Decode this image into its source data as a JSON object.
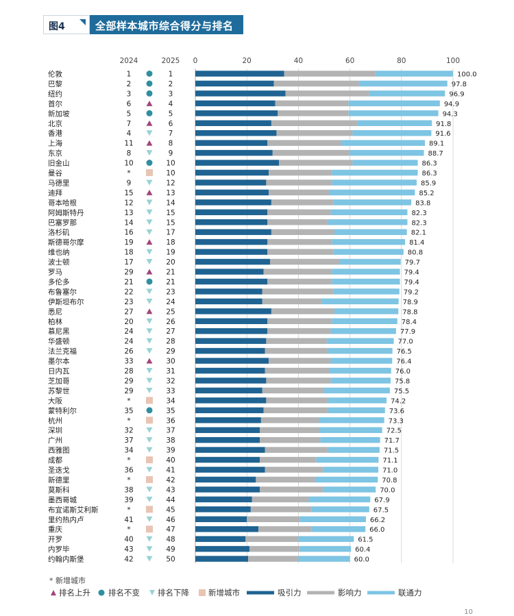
{
  "header": {
    "figure_label": "图4",
    "title": "全部样本城市综合得分与排名"
  },
  "columns": {
    "y2024": "2024",
    "y2025": "2025"
  },
  "axis_ticks": [
    "0",
    "20",
    "40",
    "60",
    "80",
    "100"
  ],
  "footnote": "* 新增城市",
  "page_number": "10",
  "legend": {
    "up": "排名上升",
    "same": "排名不变",
    "down": "排名下降",
    "new": "新增城市",
    "attraction": "吸引力",
    "influence": "影响力",
    "connectivity": "联通力"
  },
  "colors": {
    "attraction": "#1f6392",
    "influence": "#b3b3b3",
    "connectivity": "#7ec4e3",
    "up": "#a3457b",
    "same": "#2f8fa0",
    "down": "#9ad2d2",
    "new": "#e8c4b4"
  },
  "chart_data": {
    "type": "bar",
    "stacked": true,
    "orientation": "horizontal",
    "xlim": [
      0,
      100
    ],
    "grid": true,
    "legend_position": "bottom",
    "rows": [
      {
        "city": "伦敦",
        "r2024": "1",
        "trend": "same",
        "r2025": "1",
        "total": "100.0",
        "a": 34.5,
        "i": 35.5,
        "c": 30.0
      },
      {
        "city": "巴黎",
        "r2024": "2",
        "trend": "same",
        "r2025": "2",
        "total": "97.8",
        "a": 30.5,
        "i": 33.0,
        "c": 34.3
      },
      {
        "city": "纽约",
        "r2024": "3",
        "trend": "same",
        "r2025": "3",
        "total": "96.9",
        "a": 35.0,
        "i": 32.5,
        "c": 29.4
      },
      {
        "city": "首尔",
        "r2024": "6",
        "trend": "up",
        "r2025": "4",
        "total": "94.9",
        "a": 31.0,
        "i": 28.5,
        "c": 35.4
      },
      {
        "city": "新加坡",
        "r2024": "5",
        "trend": "same",
        "r2025": "5",
        "total": "94.3",
        "a": 32.0,
        "i": 27.5,
        "c": 34.8
      },
      {
        "city": "北京",
        "r2024": "7",
        "trend": "up",
        "r2025": "6",
        "total": "91.8",
        "a": 29.5,
        "i": 33.5,
        "c": 28.8
      },
      {
        "city": "香港",
        "r2024": "4",
        "trend": "down",
        "r2025": "7",
        "total": "91.6",
        "a": 31.5,
        "i": 29.5,
        "c": 30.6
      },
      {
        "city": "上海",
        "r2024": "11",
        "trend": "up",
        "r2025": "8",
        "total": "89.1",
        "a": 28.0,
        "i": 28.5,
        "c": 32.6
      },
      {
        "city": "东京",
        "r2024": "8",
        "trend": "down",
        "r2025": "9",
        "total": "88.7",
        "a": 30.0,
        "i": 30.0,
        "c": 28.7
      },
      {
        "city": "旧金山",
        "r2024": "10",
        "trend": "same",
        "r2025": "10",
        "total": "86.3",
        "a": 32.5,
        "i": 28.5,
        "c": 25.3
      },
      {
        "city": "曼谷",
        "r2024": "*",
        "trend": "new",
        "r2025": "10",
        "total": "86.3",
        "a": 28.5,
        "i": 24.5,
        "c": 33.3
      },
      {
        "city": "马德里",
        "r2024": "9",
        "trend": "down",
        "r2025": "12",
        "total": "85.9",
        "a": 27.5,
        "i": 25.5,
        "c": 32.9
      },
      {
        "city": "迪拜",
        "r2024": "15",
        "trend": "up",
        "r2025": "13",
        "total": "85.2",
        "a": 28.5,
        "i": 23.5,
        "c": 33.2
      },
      {
        "city": "哥本哈根",
        "r2024": "12",
        "trend": "down",
        "r2025": "14",
        "total": "83.8",
        "a": 29.5,
        "i": 24.0,
        "c": 30.3
      },
      {
        "city": "阿姆斯特丹",
        "r2024": "13",
        "trend": "down",
        "r2025": "15",
        "total": "82.3",
        "a": 28.0,
        "i": 24.5,
        "c": 29.8
      },
      {
        "city": "巴塞罗那",
        "r2024": "14",
        "trend": "down",
        "r2025": "15",
        "total": "82.3",
        "a": 28.0,
        "i": 23.5,
        "c": 30.8
      },
      {
        "city": "洛杉矶",
        "r2024": "16",
        "trend": "down",
        "r2025": "17",
        "total": "82.1",
        "a": 29.5,
        "i": 24.5,
        "c": 28.1
      },
      {
        "city": "斯德哥尔摩",
        "r2024": "19",
        "trend": "up",
        "r2025": "18",
        "total": "81.4",
        "a": 28.0,
        "i": 25.0,
        "c": 28.4
      },
      {
        "city": "维也纳",
        "r2024": "18",
        "trend": "down",
        "r2025": "19",
        "total": "80.8",
        "a": 28.0,
        "i": 25.5,
        "c": 27.3
      },
      {
        "city": "波士顿",
        "r2024": "17",
        "trend": "down",
        "r2025": "20",
        "total": "79.7",
        "a": 29.0,
        "i": 27.0,
        "c": 23.7
      },
      {
        "city": "罗马",
        "r2024": "29",
        "trend": "up",
        "r2025": "21",
        "total": "79.4",
        "a": 26.5,
        "i": 26.5,
        "c": 26.4
      },
      {
        "city": "多伦多",
        "r2024": "21",
        "trend": "same",
        "r2025": "21",
        "total": "79.4",
        "a": 28.0,
        "i": 25.0,
        "c": 26.4
      },
      {
        "city": "布鲁塞尔",
        "r2024": "22",
        "trend": "down",
        "r2025": "23",
        "total": "79.2",
        "a": 26.0,
        "i": 27.5,
        "c": 25.7
      },
      {
        "city": "伊斯坦布尔",
        "r2024": "23",
        "trend": "down",
        "r2025": "24",
        "total": "78.9",
        "a": 26.0,
        "i": 23.0,
        "c": 29.9
      },
      {
        "city": "悉尼",
        "r2024": "27",
        "trend": "up",
        "r2025": "25",
        "total": "78.8",
        "a": 29.5,
        "i": 24.5,
        "c": 24.8
      },
      {
        "city": "柏林",
        "r2024": "20",
        "trend": "down",
        "r2025": "26",
        "total": "78.4",
        "a": 28.0,
        "i": 25.0,
        "c": 25.4
      },
      {
        "city": "慕尼黑",
        "r2024": "24",
        "trend": "down",
        "r2025": "27",
        "total": "77.9",
        "a": 28.0,
        "i": 24.5,
        "c": 25.4
      },
      {
        "city": "华盛顿",
        "r2024": "24",
        "trend": "down",
        "r2025": "28",
        "total": "77.0",
        "a": 27.5,
        "i": 23.5,
        "c": 26.0
      },
      {
        "city": "法兰克福",
        "r2024": "26",
        "trend": "down",
        "r2025": "29",
        "total": "76.5",
        "a": 27.0,
        "i": 24.5,
        "c": 25.0
      },
      {
        "city": "墨尔本",
        "r2024": "33",
        "trend": "up",
        "r2025": "30",
        "total": "76.4",
        "a": 28.5,
        "i": 24.0,
        "c": 23.9
      },
      {
        "city": "日内瓦",
        "r2024": "28",
        "trend": "down",
        "r2025": "31",
        "total": "76.0",
        "a": 27.0,
        "i": 25.0,
        "c": 24.0
      },
      {
        "city": "芝加哥",
        "r2024": "29",
        "trend": "down",
        "r2025": "32",
        "total": "75.8",
        "a": 27.5,
        "i": 25.0,
        "c": 23.3
      },
      {
        "city": "苏黎世",
        "r2024": "29",
        "trend": "down",
        "r2025": "33",
        "total": "75.5",
        "a": 26.0,
        "i": 24.0,
        "c": 25.5
      },
      {
        "city": "大阪",
        "r2024": "*",
        "trend": "new",
        "r2025": "34",
        "total": "74.2",
        "a": 27.5,
        "i": 24.0,
        "c": 22.7
      },
      {
        "city": "蒙特利尔",
        "r2024": "35",
        "trend": "same",
        "r2025": "35",
        "total": "73.6",
        "a": 26.5,
        "i": 25.0,
        "c": 22.1
      },
      {
        "city": "杭州",
        "r2024": "*",
        "trend": "new",
        "r2025": "36",
        "total": "73.3",
        "a": 25.5,
        "i": 22.5,
        "c": 25.3
      },
      {
        "city": "深圳",
        "r2024": "32",
        "trend": "down",
        "r2025": "37",
        "total": "72.5",
        "a": 25.0,
        "i": 23.0,
        "c": 24.5
      },
      {
        "city": "广州",
        "r2024": "37",
        "trend": "down",
        "r2025": "38",
        "total": "71.7",
        "a": 25.0,
        "i": 23.5,
        "c": 23.2
      },
      {
        "city": "西雅图",
        "r2024": "34",
        "trend": "down",
        "r2025": "39",
        "total": "71.5",
        "a": 27.0,
        "i": 24.5,
        "c": 20.0
      },
      {
        "city": "成都",
        "r2024": "*",
        "trend": "new",
        "r2025": "40",
        "total": "71.1",
        "a": 25.0,
        "i": 22.0,
        "c": 24.1
      },
      {
        "city": "圣迭戈",
        "r2024": "36",
        "trend": "down",
        "r2025": "41",
        "total": "71.0",
        "a": 27.0,
        "i": 22.5,
        "c": 21.5
      },
      {
        "city": "新德里",
        "r2024": "*",
        "trend": "new",
        "r2025": "42",
        "total": "70.8",
        "a": 23.5,
        "i": 23.0,
        "c": 24.3
      },
      {
        "city": "莫斯科",
        "r2024": "38",
        "trend": "down",
        "r2025": "43",
        "total": "70.0",
        "a": 25.0,
        "i": 24.5,
        "c": 20.5
      },
      {
        "city": "墨西哥城",
        "r2024": "39",
        "trend": "down",
        "r2025": "44",
        "total": "67.9",
        "a": 22.0,
        "i": 22.0,
        "c": 23.9
      },
      {
        "city": "布宜诺斯艾利斯",
        "r2024": "*",
        "trend": "new",
        "r2025": "45",
        "total": "67.5",
        "a": 21.5,
        "i": 23.5,
        "c": 22.5
      },
      {
        "city": "里约热内卢",
        "r2024": "41",
        "trend": "down",
        "r2025": "46",
        "total": "66.2",
        "a": 20.0,
        "i": 20.5,
        "c": 25.7
      },
      {
        "city": "重庆",
        "r2024": "*",
        "trend": "new",
        "r2025": "47",
        "total": "66.0",
        "a": 24.5,
        "i": 20.5,
        "c": 21.0
      },
      {
        "city": "开罗",
        "r2024": "40",
        "trend": "down",
        "r2025": "48",
        "total": "61.5",
        "a": 19.5,
        "i": 20.5,
        "c": 21.5
      },
      {
        "city": "内罗毕",
        "r2024": "43",
        "trend": "down",
        "r2025": "49",
        "total": "60.4",
        "a": 21.0,
        "i": 19.5,
        "c": 19.9
      },
      {
        "city": "约翰内斯堡",
        "r2024": "42",
        "trend": "down",
        "r2025": "50",
        "total": "60.0",
        "a": 20.5,
        "i": 19.5,
        "c": 20.0
      }
    ]
  }
}
